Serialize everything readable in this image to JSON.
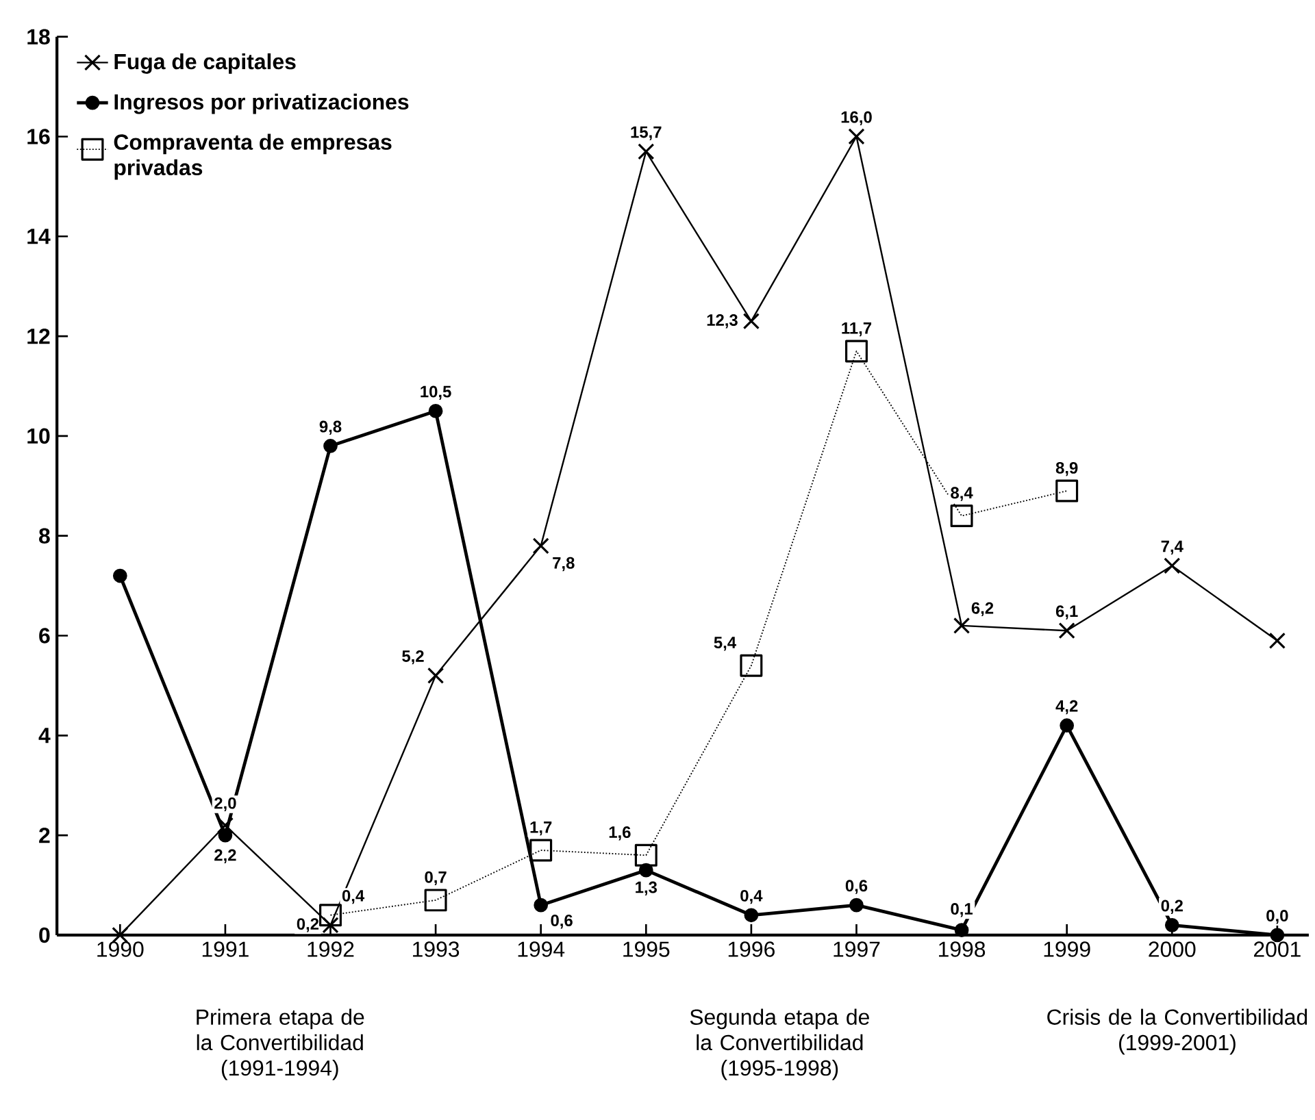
{
  "chart_data": {
    "type": "line",
    "categories": [
      "1990",
      "1991",
      "1992",
      "1993",
      "1994",
      "1995",
      "1996",
      "1997",
      "1998",
      "1999",
      "2000",
      "2001"
    ],
    "series": [
      {
        "name": "Fuga de capitales",
        "color": "#000000",
        "marker": "cross",
        "line_style": "solid",
        "values": [
          0,
          2.2,
          0.2,
          5.2,
          7.8,
          15.7,
          12.3,
          16.0,
          6.2,
          6.1,
          7.4,
          5.9
        ],
        "value_labels": [
          null,
          "2,2",
          "0,2",
          "5,2",
          "7,8",
          "15,7",
          "12,3",
          "16,0",
          "6,2",
          "6,1",
          "7,4",
          null
        ]
      },
      {
        "name": "Ingresos por privatizaciones",
        "color": "#000000",
        "marker": "circle",
        "line_style": "solid",
        "values": [
          7.2,
          2.0,
          9.8,
          10.5,
          0.6,
          1.3,
          0.4,
          0.6,
          0.1,
          4.2,
          0.2,
          0.0
        ],
        "value_labels": [
          null,
          "2,0",
          "9,8",
          "10,5",
          "0,6",
          "1,3",
          "0,4",
          "0,6",
          "0,1",
          "4,2",
          "0,2",
          "0,0"
        ]
      },
      {
        "name": "Compraventa de empresas privadas",
        "color": "#000000",
        "marker": "square",
        "line_style": "dotted",
        "values": [
          null,
          null,
          0.4,
          0.7,
          1.7,
          1.6,
          5.4,
          11.7,
          8.4,
          8.9,
          null,
          null
        ],
        "value_labels": [
          null,
          null,
          "0,4",
          "0,7",
          "1,7",
          "1,6",
          "5,4",
          "11,7",
          "8,4",
          "8,9",
          null,
          null
        ]
      }
    ],
    "ylim": [
      0,
      18
    ],
    "yticks": [
      0,
      2,
      4,
      6,
      8,
      10,
      12,
      14,
      16,
      18
    ],
    "grid": false,
    "legend": "top left",
    "annotations": [
      "Primera etapa de la Convertibilidad (1991-1994)",
      "Segunda etapa de la Convertibilidad (1995-1998)",
      "Crisis de la Convertibilidad (1999-2001)"
    ]
  }
}
